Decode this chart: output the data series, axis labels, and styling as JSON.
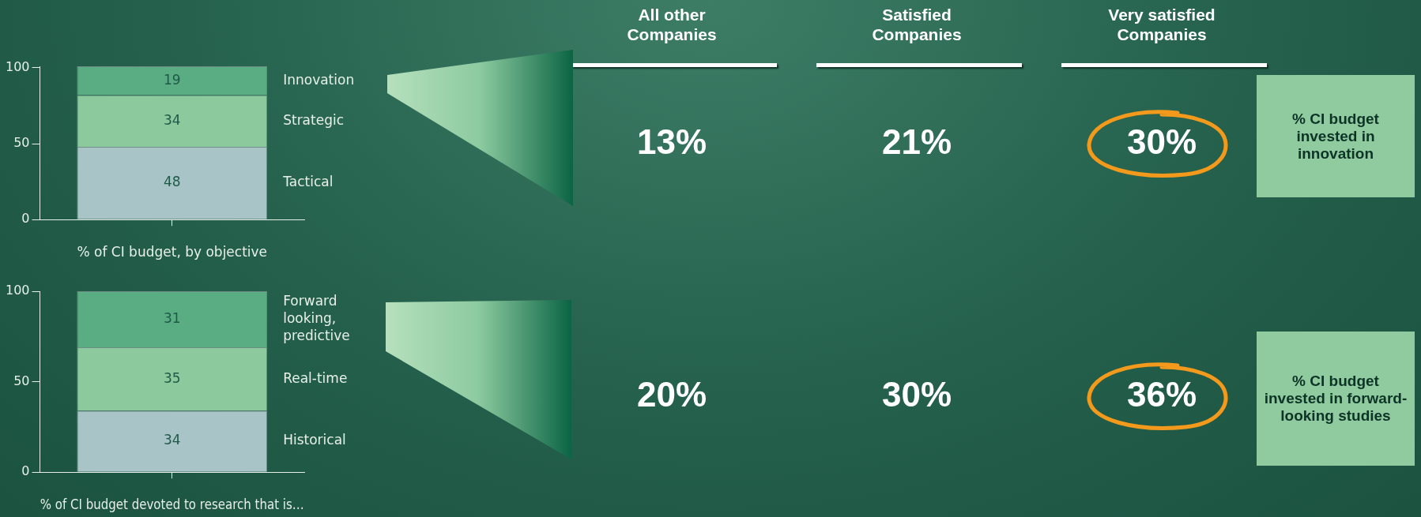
{
  "chart_data": [
    {
      "type": "bar",
      "stacked": true,
      "categories": [
        null
      ],
      "xlabel": "% of CI budget, by objective",
      "ylim": [
        0,
        101
      ],
      "yticks": [
        0,
        50,
        100
      ],
      "data_labels": true,
      "series": [
        {
          "name": "Tactical",
          "color": "#a9c4c6",
          "values": [
            48
          ]
        },
        {
          "name": "Strategic",
          "color": "#8cc99c",
          "values": [
            34
          ]
        },
        {
          "name": "Innovation",
          "color": "#5aad82",
          "values": [
            19
          ]
        }
      ]
    },
    {
      "type": "bar",
      "stacked": true,
      "categories": [
        null
      ],
      "xlabel": "% of CI budget devoted to research that is…",
      "ylim": [
        0,
        100
      ],
      "yticks": [
        0,
        50,
        100
      ],
      "data_labels": true,
      "series": [
        {
          "name": "Historical",
          "color": "#a9c4c6",
          "values": [
            34
          ]
        },
        {
          "name": "Real-time",
          "color": "#8cc99c",
          "values": [
            35
          ]
        },
        {
          "name": "Forward looking, predictive",
          "color": "#5aad82",
          "values": [
            31
          ]
        }
      ]
    },
    {
      "type": "other",
      "categories": [
        "All other Companies",
        "Satisfied Companies",
        "Very satisfied Companies"
      ],
      "series": [
        {
          "name": "% CI budget invested in innovation",
          "values": [
            13,
            21,
            30
          ],
          "value_labels": [
            "13%",
            "21%",
            "30%"
          ]
        },
        {
          "name": "% CI budget invested in forward-looking studies",
          "values": [
            20,
            30,
            36
          ],
          "value_labels": [
            "20%",
            "30%",
            "36%"
          ]
        }
      ]
    }
  ]
}
